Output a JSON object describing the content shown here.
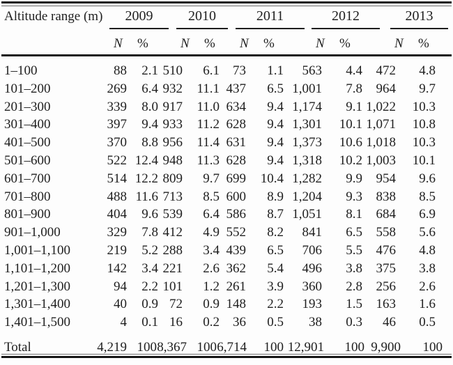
{
  "table": {
    "corner_header": "Altitude range (m)",
    "years": [
      "2009",
      "2010",
      "2011",
      "2012",
      "2013"
    ],
    "subcolumns": {
      "n": "N",
      "pct": "%"
    },
    "rows": [
      {
        "label": "1–100",
        "values": [
          "88",
          "2.1",
          "510",
          "6.1",
          "73",
          "1.1",
          "563",
          "4.4",
          "472",
          "4.8"
        ]
      },
      {
        "label": "101–200",
        "values": [
          "269",
          "6.4",
          "932",
          "11.1",
          "437",
          "6.5",
          "1,001",
          "7.8",
          "964",
          "9.7"
        ]
      },
      {
        "label": "201–300",
        "values": [
          "339",
          "8.0",
          "917",
          "11.0",
          "634",
          "9.4",
          "1,174",
          "9.1",
          "1,022",
          "10.3"
        ]
      },
      {
        "label": "301–400",
        "values": [
          "397",
          "9.4",
          "933",
          "11.2",
          "628",
          "9.4",
          "1,301",
          "10.1",
          "1,071",
          "10.8"
        ]
      },
      {
        "label": "401–500",
        "values": [
          "370",
          "8.8",
          "956",
          "11.4",
          "631",
          "9.4",
          "1,373",
          "10.6",
          "1,018",
          "10.3"
        ]
      },
      {
        "label": "501–600",
        "values": [
          "522",
          "12.4",
          "948",
          "11.3",
          "628",
          "9.4",
          "1,318",
          "10.2",
          "1,003",
          "10.1"
        ]
      },
      {
        "label": "601–700",
        "values": [
          "514",
          "12.2",
          "809",
          "9.7",
          "699",
          "10.4",
          "1,282",
          "9.9",
          "954",
          "9.6"
        ]
      },
      {
        "label": "701–800",
        "values": [
          "488",
          "11.6",
          "713",
          "8.5",
          "600",
          "8.9",
          "1,204",
          "9.3",
          "838",
          "8.5"
        ]
      },
      {
        "label": "801–900",
        "values": [
          "404",
          "9.6",
          "539",
          "6.4",
          "586",
          "8.7",
          "1,051",
          "8.1",
          "684",
          "6.9"
        ]
      },
      {
        "label": "901–1,000",
        "values": [
          "329",
          "7.8",
          "412",
          "4.9",
          "552",
          "8.2",
          "841",
          "6.5",
          "558",
          "5.6"
        ]
      },
      {
        "label": "1,001–1,100",
        "values": [
          "219",
          "5.2",
          "288",
          "3.4",
          "439",
          "6.5",
          "706",
          "5.5",
          "476",
          "4.8"
        ]
      },
      {
        "label": "1,101–1,200",
        "values": [
          "142",
          "3.4",
          "221",
          "2.6",
          "362",
          "5.4",
          "496",
          "3.8",
          "375",
          "3.8"
        ]
      },
      {
        "label": "1,201–1,300",
        "values": [
          "94",
          "2.2",
          "101",
          "1.2",
          "261",
          "3.9",
          "360",
          "2.8",
          "256",
          "2.6"
        ]
      },
      {
        "label": "1,301–1,400",
        "values": [
          "40",
          "0.9",
          "72",
          "0.9",
          "148",
          "2.2",
          "193",
          "1.5",
          "163",
          "1.6"
        ]
      },
      {
        "label": "1,401–1,500",
        "values": [
          "4",
          "0.1",
          "16",
          "0.2",
          "36",
          "0.5",
          "38",
          "0.3",
          "46",
          "0.5"
        ]
      }
    ],
    "total_row": {
      "label": "Total",
      "values": [
        "4,219",
        "100",
        "8,367",
        "100",
        "6,714",
        "100",
        "12,901",
        "100",
        "9,900",
        "100"
      ]
    }
  },
  "colors": {
    "background": "#fdfdfd",
    "text": "#1f1f1f",
    "rule": "#161616"
  }
}
